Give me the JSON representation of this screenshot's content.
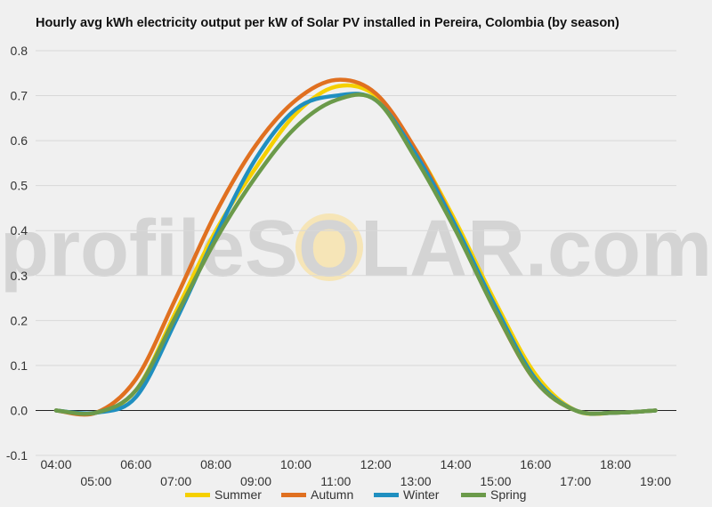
{
  "chart_data": {
    "type": "line",
    "title": "Hourly avg kWh electricity output per kW of Solar PV installed in Pereira, Colombia (by season)",
    "x": [
      "04:00",
      "05:00",
      "06:00",
      "07:00",
      "08:00",
      "09:00",
      "10:00",
      "11:00",
      "12:00",
      "13:00",
      "14:00",
      "15:00",
      "16:00",
      "17:00",
      "18:00",
      "19:00"
    ],
    "xlabel": "",
    "ylabel": "",
    "ylim": [
      -0.1,
      0.8
    ],
    "yticks": [
      "-0.1",
      "0.0",
      "0.1",
      "0.2",
      "0.3",
      "0.4",
      "0.5",
      "0.6",
      "0.7",
      "0.8"
    ],
    "grid": true,
    "legend": "bottom",
    "watermark": "profileSOLAR.com",
    "series": [
      {
        "name": "Summer",
        "color": "#f5d000",
        "values": [
          0.0,
          -0.005,
          0.045,
          0.22,
          0.4,
          0.54,
          0.66,
          0.72,
          0.7,
          0.58,
          0.42,
          0.24,
          0.08,
          0.0,
          -0.005,
          0.0
        ]
      },
      {
        "name": "Autumn",
        "color": "#e07020",
        "values": [
          0.0,
          -0.005,
          0.07,
          0.25,
          0.44,
          0.59,
          0.69,
          0.735,
          0.705,
          0.58,
          0.41,
          0.22,
          0.065,
          0.0,
          -0.005,
          0.0
        ]
      },
      {
        "name": "Winter",
        "color": "#1f8fc0",
        "values": [
          0.0,
          -0.005,
          0.03,
          0.2,
          0.39,
          0.56,
          0.67,
          0.7,
          0.69,
          0.57,
          0.41,
          0.23,
          0.07,
          0.0,
          -0.005,
          0.0
        ]
      },
      {
        "name": "Spring",
        "color": "#6b9a4a",
        "values": [
          0.0,
          -0.005,
          0.045,
          0.21,
          0.38,
          0.52,
          0.63,
          0.69,
          0.69,
          0.56,
          0.4,
          0.22,
          0.065,
          0.0,
          -0.005,
          0.0
        ]
      }
    ]
  }
}
